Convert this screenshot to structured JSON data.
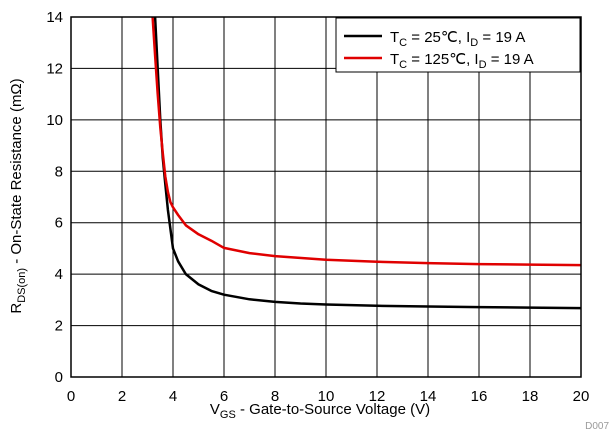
{
  "chart_data": {
    "type": "line",
    "xlabel": {
      "main": "V",
      "sub": "GS",
      "rest": " - Gate-to-Source Voltage (V)"
    },
    "ylabel": {
      "main": "R",
      "sub": "DS(on)",
      "rest": " - On-State Resistance (mΩ)"
    },
    "xlim": [
      0,
      20
    ],
    "ylim": [
      0,
      14
    ],
    "xticks": [
      0,
      2,
      4,
      6,
      8,
      10,
      12,
      14,
      16,
      18,
      20
    ],
    "yticks": [
      0,
      2,
      4,
      6,
      8,
      10,
      12,
      14
    ],
    "grid": true,
    "legend_position": "top-right",
    "corner_label": "D007",
    "series": [
      {
        "legend": {
          "t": "T",
          "tsub": "C",
          "tval": " = 25℃, I",
          "isub": "D",
          "ival": " = 19 A"
        },
        "color": "#000000",
        "x": [
          3.3,
          3.4,
          3.5,
          3.6,
          3.7,
          3.8,
          4.0,
          4.2,
          4.5,
          5.0,
          5.5,
          6.0,
          7.0,
          8.0,
          9.0,
          10.0,
          12.0,
          14.0,
          16.0,
          18.0,
          20.0
        ],
        "y": [
          14.0,
          12.0,
          10.0,
          8.5,
          7.5,
          6.5,
          5.0,
          4.5,
          4.0,
          3.6,
          3.35,
          3.2,
          3.02,
          2.92,
          2.86,
          2.82,
          2.77,
          2.74,
          2.72,
          2.7,
          2.68
        ]
      },
      {
        "legend": {
          "t": "T",
          "tsub": "C",
          "tval": " = 125℃, I",
          "isub": "D",
          "ival": " = 19 A"
        },
        "color": "#e00000",
        "x": [
          3.2,
          3.3,
          3.4,
          3.5,
          3.6,
          3.7,
          3.8,
          3.9,
          4.0,
          4.2,
          4.5,
          5.0,
          5.5,
          6.0,
          7.0,
          8.0,
          10.0,
          12.0,
          14.0,
          16.0,
          18.0,
          20.0
        ],
        "y": [
          14.0,
          12.5,
          11.0,
          9.7,
          8.7,
          7.8,
          7.2,
          6.8,
          6.6,
          6.3,
          5.9,
          5.55,
          5.3,
          5.02,
          4.82,
          4.7,
          4.56,
          4.48,
          4.43,
          4.39,
          4.37,
          4.35
        ]
      }
    ]
  }
}
